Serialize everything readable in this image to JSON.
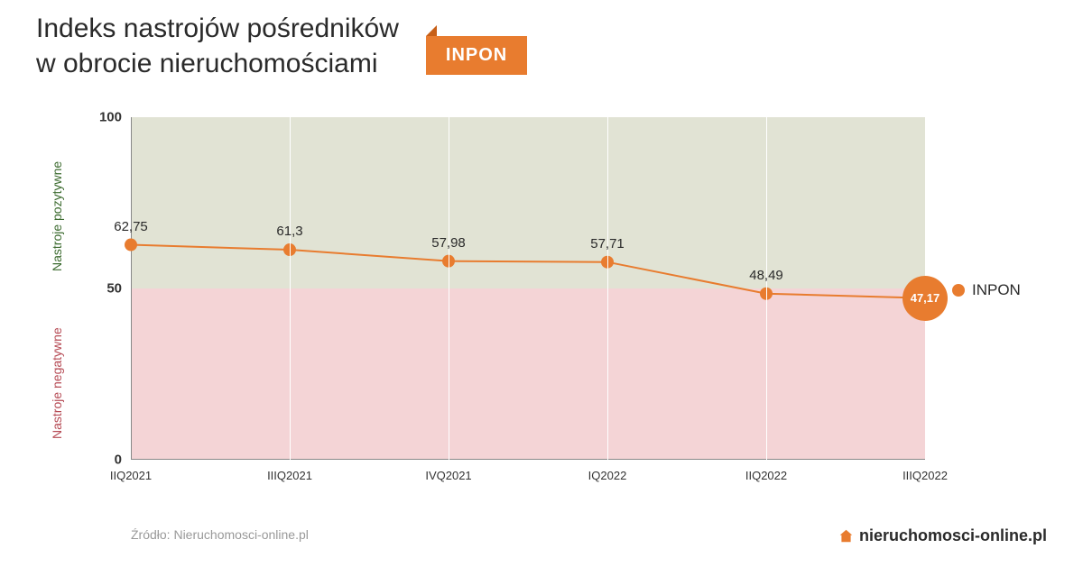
{
  "title_line1": "Indeks nastrojów pośredników",
  "title_line2": "w obrocie nieruchomościami",
  "badge": "INPON",
  "chart": {
    "type": "line",
    "ylim": [
      0,
      100
    ],
    "yticks": [
      0,
      50,
      100
    ],
    "categories": [
      "IIQ2021",
      "IIIQ2021",
      "IVQ2021",
      "IQ2022",
      "IIQ2022",
      "IIIQ2022"
    ],
    "values": [
      62.75,
      61.3,
      57.98,
      57.71,
      48.49,
      47.17
    ],
    "value_labels": [
      "62,75",
      "61,3",
      "57,98",
      "57,71",
      "48,49",
      "47,17"
    ],
    "line_color": "#e87c2f",
    "line_width": 2,
    "marker_color": "#e87c2f",
    "marker_radius": 7,
    "last_marker_radius": 25,
    "last_label_color": "#ffffff",
    "band_top_color": "#e1e3d4",
    "band_bottom_color": "#f4d4d6",
    "grid_color": "#ffffff",
    "axis_color": "#888888",
    "label_fontsize": 15,
    "tick_fontsize": 13,
    "highlight_index": 5
  },
  "side_labels": {
    "positive": "Nastroje\npozytywne",
    "positive_color": "#3c6b2f",
    "negative": "Nastroje\nnegatywne",
    "negative_color": "#b64b55"
  },
  "legend": {
    "label": "INPON",
    "color": "#e87c2f"
  },
  "source": "Źródło: Nieruchomosci-online.pl",
  "brand": "nieruchomosci-online.pl",
  "brand_icon_color": "#e87c2f"
}
